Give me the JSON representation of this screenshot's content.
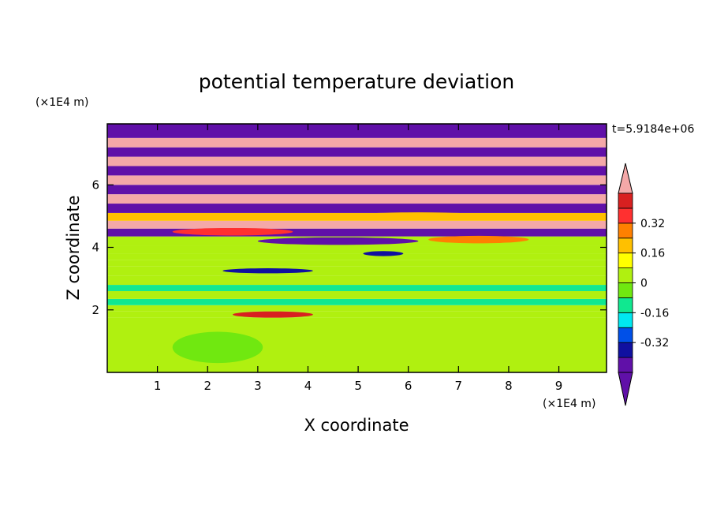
{
  "chart_data": {
    "type": "heatmap",
    "title": "potential temperature deviation",
    "xlabel": "X coordinate",
    "ylabel": "Z coordinate",
    "x_unit": "(×1E4 m)",
    "y_unit": "(×1E4 m)",
    "time_label": "t=5.9184e+06",
    "xlim": [
      0,
      9.95
    ],
    "ylim": [
      0,
      7.95
    ],
    "x_ticks": [
      1,
      2,
      3,
      4,
      5,
      6,
      7,
      8,
      9
    ],
    "y_ticks": [
      2,
      4,
      6
    ],
    "colorbar": {
      "levels": [
        -0.48,
        -0.4,
        -0.32,
        -0.24,
        -0.16,
        -0.08,
        0,
        0.08,
        0.16,
        0.24,
        0.32,
        0.4,
        0.48
      ],
      "labels": [
        "-0.32",
        "-0.16",
        "0",
        "0.16",
        "0.32"
      ],
      "label_values": [
        -0.32,
        -0.16,
        0,
        0.16,
        0.32
      ],
      "colors": [
        "#6010a8",
        "#1010a0",
        "#0050e8",
        "#00e8f0",
        "#10e890",
        "#70e810",
        "#b0f010",
        "#ffff00",
        "#ffc000",
        "#ff8000",
        "#ff3030",
        "#d82020"
      ],
      "under_color": "#6010a8",
      "over_color": "#f4a8a8"
    },
    "bands": [
      {
        "z0": 0.0,
        "z1": 1.75,
        "value": 0.02
      },
      {
        "z0": 1.75,
        "z1": 1.95,
        "value": 0.04
      },
      {
        "z0": 1.95,
        "z1": 2.15,
        "value": 0.0
      },
      {
        "z0": 2.15,
        "z1": 2.35,
        "value": -0.1
      },
      {
        "z0": 2.35,
        "z1": 2.6,
        "value": 0.0
      },
      {
        "z0": 2.6,
        "z1": 2.8,
        "value": -0.1
      },
      {
        "z0": 2.8,
        "z1": 3.1,
        "value": 0.0
      },
      {
        "z0": 3.1,
        "z1": 3.4,
        "value": 0.04
      },
      {
        "z0": 3.4,
        "z1": 3.6,
        "value": 0.0
      },
      {
        "z0": 3.6,
        "z1": 3.8,
        "value": 0.04
      },
      {
        "z0": 3.8,
        "z1": 4.05,
        "value": 0.0
      },
      {
        "z0": 4.05,
        "z1": 4.35,
        "value": 0.04
      },
      {
        "z0": 4.35,
        "z1": 4.6,
        "value": -0.52
      },
      {
        "z0": 4.6,
        "z1": 4.85,
        "value": 0.52
      },
      {
        "z0": 4.85,
        "z1": 5.1,
        "value": 0.2
      },
      {
        "z0": 5.1,
        "z1": 5.4,
        "value": -0.52
      },
      {
        "z0": 5.4,
        "z1": 5.7,
        "value": 0.52
      },
      {
        "z0": 5.7,
        "z1": 6.0,
        "value": -0.52
      },
      {
        "z0": 6.0,
        "z1": 6.3,
        "value": 0.52
      },
      {
        "z0": 6.3,
        "z1": 6.6,
        "value": -0.52
      },
      {
        "z0": 6.6,
        "z1": 6.9,
        "value": 0.52
      },
      {
        "z0": 6.9,
        "z1": 7.2,
        "value": -0.52
      },
      {
        "z0": 7.2,
        "z1": 7.5,
        "value": 0.52
      },
      {
        "z0": 7.5,
        "z1": 7.95,
        "value": -0.52
      }
    ],
    "blobs": [
      {
        "x": 0.6,
        "z": 0.9,
        "rx": 0.5,
        "rz": 0.4,
        "value": 0.0
      },
      {
        "x": 2.2,
        "z": 0.8,
        "rx": 0.9,
        "rz": 0.5,
        "value": -0.04
      },
      {
        "x": 4.8,
        "z": 0.9,
        "rx": 0.7,
        "rz": 0.5,
        "value": 0.0
      },
      {
        "x": 7.0,
        "z": 0.8,
        "rx": 1.1,
        "rz": 0.5,
        "value": 0.0
      },
      {
        "x": 9.2,
        "z": 0.9,
        "rx": 0.6,
        "rz": 0.5,
        "value": 0.0
      },
      {
        "x": 3.3,
        "z": 1.85,
        "rx": 0.8,
        "rz": 0.1,
        "value": 0.4
      },
      {
        "x": 3.2,
        "z": 3.25,
        "rx": 0.9,
        "rz": 0.08,
        "value": -0.4
      },
      {
        "x": 5.5,
        "z": 3.8,
        "rx": 0.4,
        "rz": 0.08,
        "value": -0.4
      },
      {
        "x": 4.6,
        "z": 4.2,
        "rx": 1.6,
        "rz": 0.12,
        "value": -0.52
      },
      {
        "x": 7.4,
        "z": 4.25,
        "rx": 1.0,
        "rz": 0.12,
        "value": 0.28
      },
      {
        "x": 2.5,
        "z": 4.5,
        "rx": 1.2,
        "rz": 0.12,
        "value": 0.36
      },
      {
        "x": 6.2,
        "z": 5.0,
        "rx": 1.4,
        "rz": 0.12,
        "value": 0.2
      }
    ]
  }
}
